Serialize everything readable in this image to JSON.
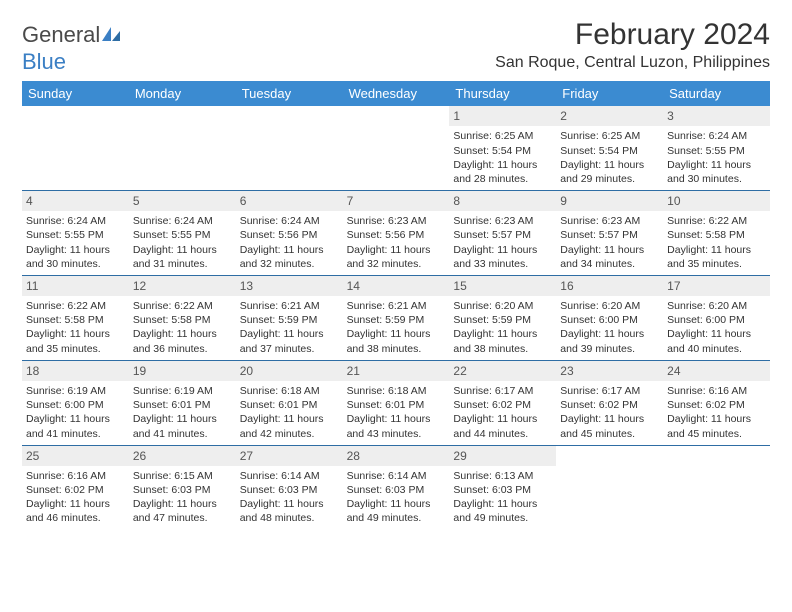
{
  "logo": {
    "text_general": "General",
    "text_blue": "Blue"
  },
  "title": {
    "month": "February 2024",
    "location": "San Roque, Central Luzon, Philippines"
  },
  "colors": {
    "header_bg": "#3b8bd1",
    "header_text": "#ffffff",
    "date_bg": "#eeeeee",
    "week_border": "#2e6da4",
    "body_text": "#333333",
    "logo_blue": "#3b7fc4",
    "logo_gray": "#4a4a4a"
  },
  "day_labels": [
    "Sunday",
    "Monday",
    "Tuesday",
    "Wednesday",
    "Thursday",
    "Friday",
    "Saturday"
  ],
  "weeks": [
    [
      {
        "date": "",
        "lines": []
      },
      {
        "date": "",
        "lines": []
      },
      {
        "date": "",
        "lines": []
      },
      {
        "date": "",
        "lines": []
      },
      {
        "date": "1",
        "lines": [
          "Sunrise: 6:25 AM",
          "Sunset: 5:54 PM",
          "Daylight: 11 hours",
          "and 28 minutes."
        ]
      },
      {
        "date": "2",
        "lines": [
          "Sunrise: 6:25 AM",
          "Sunset: 5:54 PM",
          "Daylight: 11 hours",
          "and 29 minutes."
        ]
      },
      {
        "date": "3",
        "lines": [
          "Sunrise: 6:24 AM",
          "Sunset: 5:55 PM",
          "Daylight: 11 hours",
          "and 30 minutes."
        ]
      }
    ],
    [
      {
        "date": "4",
        "lines": [
          "Sunrise: 6:24 AM",
          "Sunset: 5:55 PM",
          "Daylight: 11 hours",
          "and 30 minutes."
        ]
      },
      {
        "date": "5",
        "lines": [
          "Sunrise: 6:24 AM",
          "Sunset: 5:55 PM",
          "Daylight: 11 hours",
          "and 31 minutes."
        ]
      },
      {
        "date": "6",
        "lines": [
          "Sunrise: 6:24 AM",
          "Sunset: 5:56 PM",
          "Daylight: 11 hours",
          "and 32 minutes."
        ]
      },
      {
        "date": "7",
        "lines": [
          "Sunrise: 6:23 AM",
          "Sunset: 5:56 PM",
          "Daylight: 11 hours",
          "and 32 minutes."
        ]
      },
      {
        "date": "8",
        "lines": [
          "Sunrise: 6:23 AM",
          "Sunset: 5:57 PM",
          "Daylight: 11 hours",
          "and 33 minutes."
        ]
      },
      {
        "date": "9",
        "lines": [
          "Sunrise: 6:23 AM",
          "Sunset: 5:57 PM",
          "Daylight: 11 hours",
          "and 34 minutes."
        ]
      },
      {
        "date": "10",
        "lines": [
          "Sunrise: 6:22 AM",
          "Sunset: 5:58 PM",
          "Daylight: 11 hours",
          "and 35 minutes."
        ]
      }
    ],
    [
      {
        "date": "11",
        "lines": [
          "Sunrise: 6:22 AM",
          "Sunset: 5:58 PM",
          "Daylight: 11 hours",
          "and 35 minutes."
        ]
      },
      {
        "date": "12",
        "lines": [
          "Sunrise: 6:22 AM",
          "Sunset: 5:58 PM",
          "Daylight: 11 hours",
          "and 36 minutes."
        ]
      },
      {
        "date": "13",
        "lines": [
          "Sunrise: 6:21 AM",
          "Sunset: 5:59 PM",
          "Daylight: 11 hours",
          "and 37 minutes."
        ]
      },
      {
        "date": "14",
        "lines": [
          "Sunrise: 6:21 AM",
          "Sunset: 5:59 PM",
          "Daylight: 11 hours",
          "and 38 minutes."
        ]
      },
      {
        "date": "15",
        "lines": [
          "Sunrise: 6:20 AM",
          "Sunset: 5:59 PM",
          "Daylight: 11 hours",
          "and 38 minutes."
        ]
      },
      {
        "date": "16",
        "lines": [
          "Sunrise: 6:20 AM",
          "Sunset: 6:00 PM",
          "Daylight: 11 hours",
          "and 39 minutes."
        ]
      },
      {
        "date": "17",
        "lines": [
          "Sunrise: 6:20 AM",
          "Sunset: 6:00 PM",
          "Daylight: 11 hours",
          "and 40 minutes."
        ]
      }
    ],
    [
      {
        "date": "18",
        "lines": [
          "Sunrise: 6:19 AM",
          "Sunset: 6:00 PM",
          "Daylight: 11 hours",
          "and 41 minutes."
        ]
      },
      {
        "date": "19",
        "lines": [
          "Sunrise: 6:19 AM",
          "Sunset: 6:01 PM",
          "Daylight: 11 hours",
          "and 41 minutes."
        ]
      },
      {
        "date": "20",
        "lines": [
          "Sunrise: 6:18 AM",
          "Sunset: 6:01 PM",
          "Daylight: 11 hours",
          "and 42 minutes."
        ]
      },
      {
        "date": "21",
        "lines": [
          "Sunrise: 6:18 AM",
          "Sunset: 6:01 PM",
          "Daylight: 11 hours",
          "and 43 minutes."
        ]
      },
      {
        "date": "22",
        "lines": [
          "Sunrise: 6:17 AM",
          "Sunset: 6:02 PM",
          "Daylight: 11 hours",
          "and 44 minutes."
        ]
      },
      {
        "date": "23",
        "lines": [
          "Sunrise: 6:17 AM",
          "Sunset: 6:02 PM",
          "Daylight: 11 hours",
          "and 45 minutes."
        ]
      },
      {
        "date": "24",
        "lines": [
          "Sunrise: 6:16 AM",
          "Sunset: 6:02 PM",
          "Daylight: 11 hours",
          "and 45 minutes."
        ]
      }
    ],
    [
      {
        "date": "25",
        "lines": [
          "Sunrise: 6:16 AM",
          "Sunset: 6:02 PM",
          "Daylight: 11 hours",
          "and 46 minutes."
        ]
      },
      {
        "date": "26",
        "lines": [
          "Sunrise: 6:15 AM",
          "Sunset: 6:03 PM",
          "Daylight: 11 hours",
          "and 47 minutes."
        ]
      },
      {
        "date": "27",
        "lines": [
          "Sunrise: 6:14 AM",
          "Sunset: 6:03 PM",
          "Daylight: 11 hours",
          "and 48 minutes."
        ]
      },
      {
        "date": "28",
        "lines": [
          "Sunrise: 6:14 AM",
          "Sunset: 6:03 PM",
          "Daylight: 11 hours",
          "and 49 minutes."
        ]
      },
      {
        "date": "29",
        "lines": [
          "Sunrise: 6:13 AM",
          "Sunset: 6:03 PM",
          "Daylight: 11 hours",
          "and 49 minutes."
        ]
      },
      {
        "date": "",
        "lines": []
      },
      {
        "date": "",
        "lines": []
      }
    ]
  ]
}
